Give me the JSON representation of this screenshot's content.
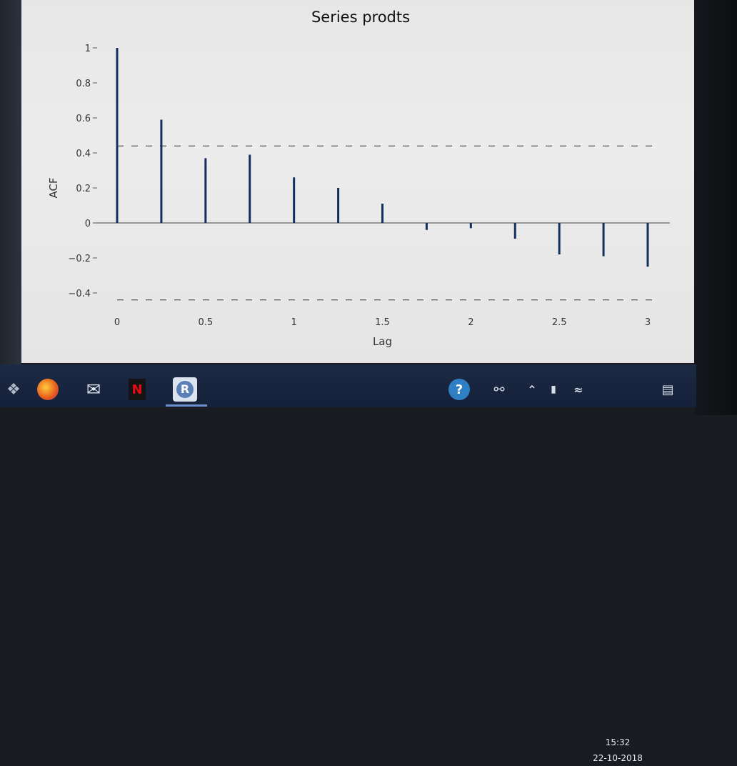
{
  "chart_data": {
    "type": "bar",
    "title": "Series prodts",
    "xlabel": "Lag",
    "ylabel": "ACF",
    "x": [
      0,
      0.25,
      0.5,
      0.75,
      1.0,
      1.25,
      1.5,
      1.75,
      2.0,
      2.25,
      2.5,
      2.75,
      3.0
    ],
    "values": [
      1.0,
      0.59,
      0.37,
      0.39,
      0.26,
      0.2,
      0.11,
      -0.04,
      -0.03,
      -0.09,
      -0.18,
      -0.19,
      -0.25
    ],
    "confidence_bound": 0.44,
    "xlim": [
      0,
      3.1
    ],
    "ylim": [
      -0.4,
      1.0
    ],
    "yticks": [
      1,
      0.8,
      0.6,
      0.4,
      0.2,
      0,
      -0.2,
      -0.4
    ],
    "ytick_labels": [
      "1",
      "0.8",
      "0.6",
      "0.4",
      "0.2",
      "0",
      "−0.2",
      "−0.4"
    ],
    "xticks": [
      0,
      0.5,
      1,
      1.5,
      2,
      2.5,
      3
    ],
    "xtick_labels": [
      "0",
      "0.5",
      "1",
      "1.5",
      "2",
      "2.5",
      "3"
    ],
    "colors": {
      "bars": "#12305e",
      "zero_line": "#444444",
      "bounds": "#333333"
    },
    "grid": false
  },
  "taskbar": {
    "icons": [
      "dropbox-icon",
      "firefox-icon",
      "mail-icon",
      "netflix-icon",
      "r-icon",
      "help-icon",
      "people-icon",
      "chevron-up-icon",
      "battery-icon",
      "wifi-icon",
      "notification-icon"
    ],
    "netflix_label": "N",
    "r_label": "R",
    "help_label": "?",
    "time": "15:32",
    "date": "22-10-2018"
  }
}
